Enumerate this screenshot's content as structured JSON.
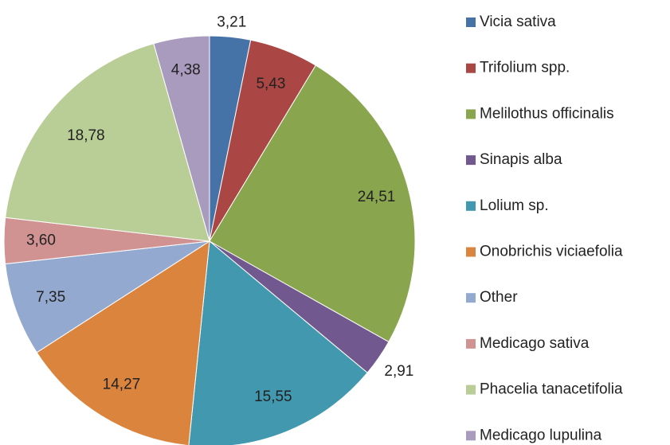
{
  "chart_data": {
    "type": "pie",
    "categories": [
      "Vicia sativa",
      "Trifolium spp.",
      "Melilothus officinalis",
      "Sinapis alba",
      "Lolium sp.",
      "Onobrichis viciaefolia",
      "Other",
      "Medicago sativa",
      "Phacelia tanacetifolia",
      "Medicago lupulina"
    ],
    "values": [
      3.21,
      5.43,
      24.51,
      2.91,
      15.55,
      14.27,
      7.35,
      3.6,
      18.78,
      4.38
    ],
    "value_labels": [
      "3,21",
      "5,43",
      "24,51",
      "2,91",
      "15,55",
      "14,27",
      "7,35",
      "3,60",
      "18,78",
      "4,38"
    ],
    "colors": [
      "#4572a7",
      "#aa4643",
      "#89a54e",
      "#71588f",
      "#4198af",
      "#db843d",
      "#93a9cf",
      "#d19392",
      "#b9cd96",
      "#a99bbd"
    ],
    "legend": "right"
  }
}
